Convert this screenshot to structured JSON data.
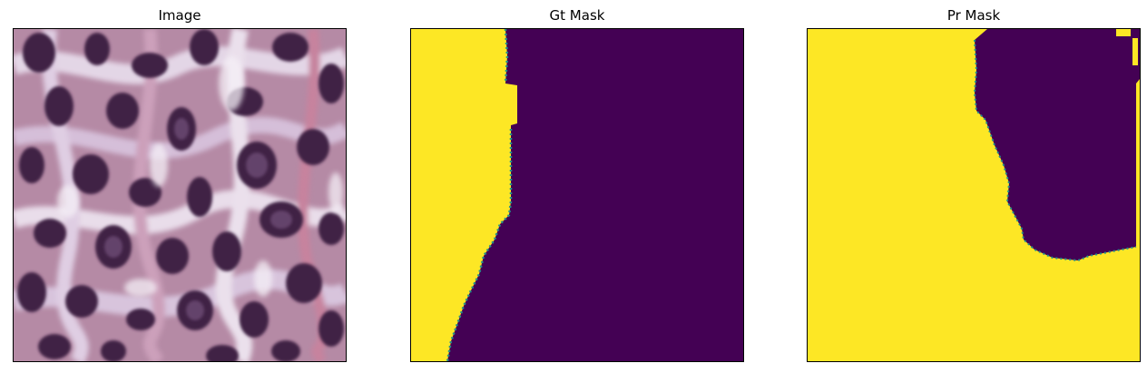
{
  "panels": [
    {
      "title": "Image"
    },
    {
      "title": "Gt Mask"
    },
    {
      "title": "Pr Mask"
    }
  ],
  "colors": {
    "mask_foreground": "#fde725",
    "mask_background": "#440154",
    "mask_edge": "#21918c",
    "tissue_light": "#d9cde0",
    "tissue_pink": "#c77a94",
    "nucleus_dark": "#3a1d3e"
  }
}
